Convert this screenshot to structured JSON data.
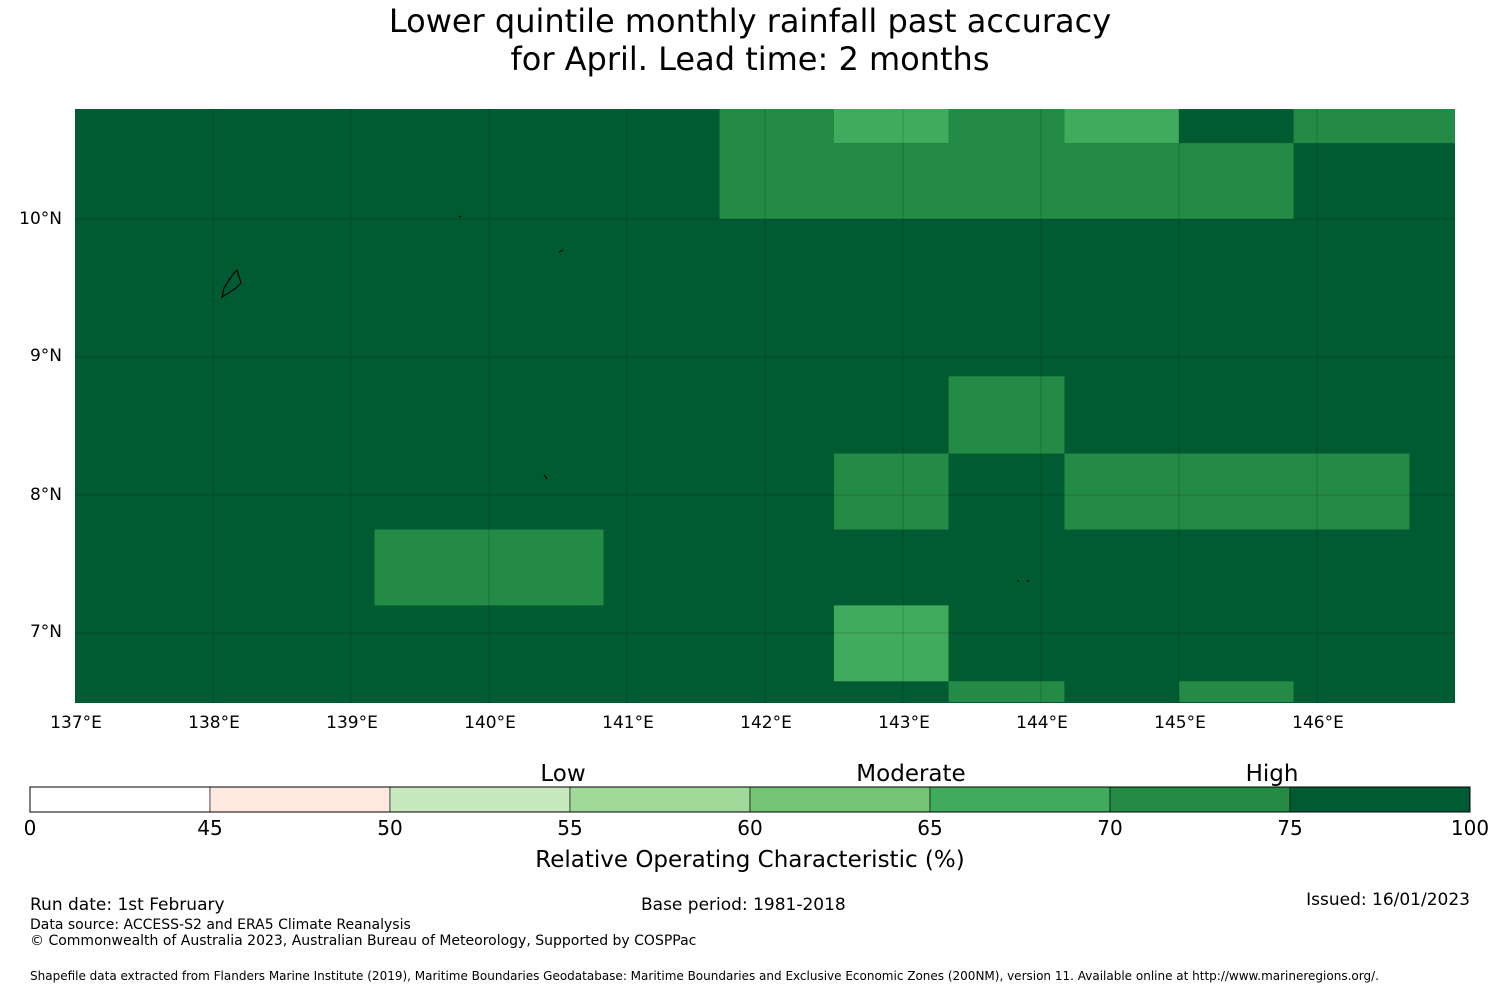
{
  "title": {
    "line1": "Lower quintile monthly rainfall past accuracy",
    "line2": "for April. Lead time: 2 months"
  },
  "map": {
    "lat_labels": [
      "10°N",
      "9°N",
      "8°N",
      "7°N"
    ],
    "lon_labels": [
      "137°E",
      "138°E",
      "139°E",
      "140°E",
      "141°E",
      "142°E",
      "143°E",
      "144°E",
      "145°E",
      "146°E"
    ]
  },
  "colorbar": {
    "categories": [
      "Low",
      "Moderate",
      "High"
    ],
    "ticks": [
      "0",
      "45",
      "50",
      "55",
      "60",
      "65",
      "70",
      "75",
      "100"
    ],
    "colors": [
      "#ffffff",
      "#fee8e0",
      "#c7e9c0",
      "#a1d99b",
      "#74c476",
      "#41ab5d",
      "#238b45",
      "#005a32"
    ],
    "label": "Relative Operating Characteristic (%)"
  },
  "footer": {
    "run_date": "Run date: 1st February",
    "base_period": "Base period: 1981-2018",
    "issued": "Issued: 16/01/2023",
    "data_source": "Data source: ACCESS-S2 and ERA5 Climate Reanalysis",
    "copyright": "© Commonwealth of Australia 2023, Australian Bureau of Meteorology, Supported by COSPPac",
    "shapefile": "Shapefile data extracted from Flanders Marine Institute (2019), Maritime Boundaries Geodatabase: Maritime Boundaries and Exclusive Economic Zones (200NM), version 11. Available online at http://www.marineregions.org/."
  },
  "chart_data": {
    "type": "heatmap",
    "variable": "Relative Operating Characteristic (%)",
    "background_class": "75-100",
    "cells": [
      {
        "lon": [
          141.67,
          142.5
        ],
        "lat": [
          10.0,
          10.8
        ],
        "roc_class": "70-75"
      },
      {
        "lon": [
          142.5,
          143.33
        ],
        "lat": [
          10.55,
          10.8
        ],
        "roc_class": "65-70"
      },
      {
        "lon": [
          142.5,
          143.33
        ],
        "lat": [
          10.0,
          10.55
        ],
        "roc_class": "70-75"
      },
      {
        "lon": [
          143.33,
          144.17
        ],
        "lat": [
          10.0,
          10.8
        ],
        "roc_class": "70-75"
      },
      {
        "lon": [
          144.17,
          145.0
        ],
        "lat": [
          10.55,
          10.8
        ],
        "roc_class": "65-70"
      },
      {
        "lon": [
          144.17,
          145.0
        ],
        "lat": [
          10.0,
          10.55
        ],
        "roc_class": "70-75"
      },
      {
        "lon": [
          145.0,
          145.83
        ],
        "lat": [
          10.0,
          10.55
        ],
        "roc_class": "70-75"
      },
      {
        "lon": [
          145.83,
          147.0
        ],
        "lat": [
          10.55,
          10.8
        ],
        "roc_class": "70-75"
      },
      {
        "lon": [
          143.33,
          144.17
        ],
        "lat": [
          8.3,
          8.86
        ],
        "roc_class": "70-75"
      },
      {
        "lon": [
          142.5,
          143.33
        ],
        "lat": [
          7.75,
          8.3
        ],
        "roc_class": "70-75"
      },
      {
        "lon": [
          144.17,
          146.67
        ],
        "lat": [
          7.75,
          8.3
        ],
        "roc_class": "70-75"
      },
      {
        "lon": [
          139.17,
          140.83
        ],
        "lat": [
          7.2,
          7.75
        ],
        "roc_class": "70-75"
      },
      {
        "lon": [
          142.5,
          143.33
        ],
        "lat": [
          6.65,
          7.2
        ],
        "roc_class": "65-70"
      },
      {
        "lon": [
          143.33,
          144.17
        ],
        "lat": [
          6.5,
          6.65
        ],
        "roc_class": "70-75"
      },
      {
        "lon": [
          145.0,
          145.83
        ],
        "lat": [
          6.5,
          6.65
        ],
        "roc_class": "70-75"
      }
    ]
  }
}
